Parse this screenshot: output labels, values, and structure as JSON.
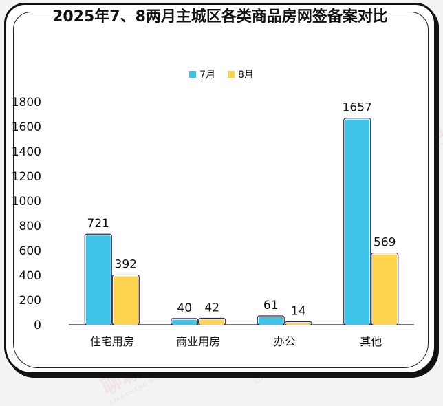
{
  "watermark": {
    "text": "聊城住房网",
    "subtext": "LIAOCHENG HOUSING NETWORK"
  },
  "chart_data": {
    "type": "bar",
    "title": "2025年7、8两月主城区各类商品房网签备案对比",
    "categories": [
      "住宅用房",
      "商业用房",
      "办公",
      "其他"
    ],
    "series": [
      {
        "name": "7月",
        "values": [
          721,
          40,
          61,
          1657
        ],
        "color": "#3dc4e8"
      },
      {
        "name": "8月",
        "values": [
          392,
          42,
          14,
          569
        ],
        "color": "#fcd34d"
      }
    ],
    "ylim": [
      0,
      1800
    ],
    "yticks": [
      0,
      200,
      400,
      600,
      800,
      1000,
      1200,
      1400,
      1600,
      1800
    ],
    "legend_position": "top-center",
    "grid": false
  }
}
